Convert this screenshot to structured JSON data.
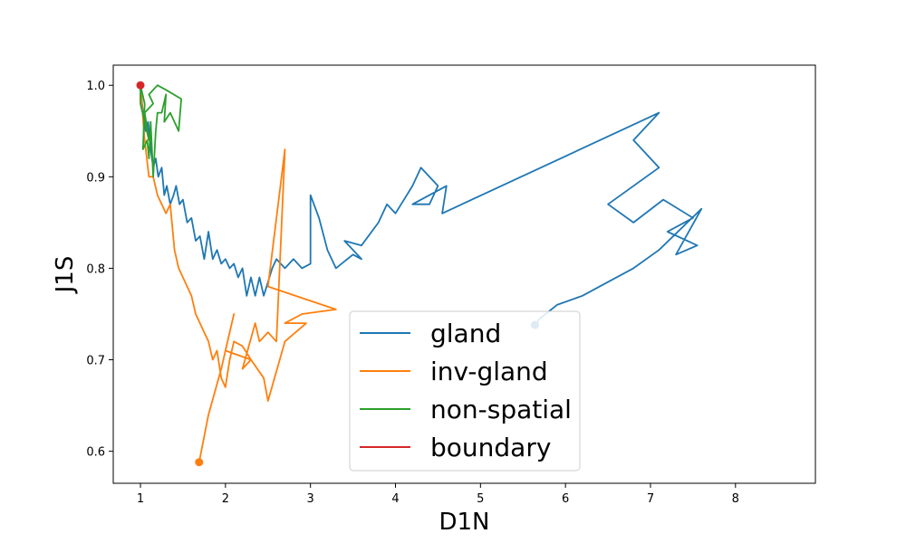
{
  "chart_data": {
    "type": "line",
    "title": "",
    "xlabel": "D1N",
    "ylabel": "J1S",
    "xlim": [
      0.68,
      8.94
    ],
    "ylim": [
      0.565,
      1.022
    ],
    "xticks": [
      1,
      2,
      3,
      4,
      5,
      6,
      7,
      8
    ],
    "yticks": [
      0.6,
      0.7,
      0.8,
      0.9,
      1.0
    ],
    "xtick_labels": [
      "1",
      "2",
      "3",
      "4",
      "5",
      "6",
      "7",
      "8"
    ],
    "ytick_labels": [
      "0.6",
      "0.7",
      "0.8",
      "0.9",
      "1.0"
    ],
    "grid": false,
    "legend_position": "lower-center",
    "series": [
      {
        "name": "gland",
        "color": "#1f77b4",
        "endpoint": [
          5.64,
          0.738
        ],
        "points": [
          [
            1.0,
            1.0
          ],
          [
            1.03,
            0.97
          ],
          [
            1.06,
            0.95
          ],
          [
            1.09,
            0.96
          ],
          [
            1.12,
            0.93
          ],
          [
            1.15,
            0.91
          ],
          [
            1.18,
            0.92
          ],
          [
            1.21,
            0.9
          ],
          [
            1.25,
            0.91
          ],
          [
            1.28,
            0.88
          ],
          [
            1.31,
            0.89
          ],
          [
            1.35,
            0.87
          ],
          [
            1.39,
            0.88
          ],
          [
            1.42,
            0.89
          ],
          [
            1.46,
            0.87
          ],
          [
            1.5,
            0.875
          ],
          [
            1.55,
            0.85
          ],
          [
            1.6,
            0.855
          ],
          [
            1.65,
            0.83
          ],
          [
            1.7,
            0.835
          ],
          [
            1.75,
            0.81
          ],
          [
            1.8,
            0.84
          ],
          [
            1.85,
            0.81
          ],
          [
            1.9,
            0.82
          ],
          [
            1.95,
            0.805
          ],
          [
            2.0,
            0.81
          ],
          [
            2.05,
            0.8
          ],
          [
            2.1,
            0.805
          ],
          [
            2.15,
            0.79
          ],
          [
            2.2,
            0.8
          ],
          [
            2.25,
            0.77
          ],
          [
            2.3,
            0.79
          ],
          [
            2.35,
            0.77
          ],
          [
            2.4,
            0.79
          ],
          [
            2.45,
            0.77
          ],
          [
            2.5,
            0.785
          ],
          [
            2.55,
            0.8
          ],
          [
            2.6,
            0.81
          ],
          [
            2.7,
            0.8
          ],
          [
            2.8,
            0.81
          ],
          [
            2.9,
            0.8
          ],
          [
            3.0,
            0.805
          ],
          [
            3.0,
            0.88
          ],
          [
            3.1,
            0.855
          ],
          [
            3.2,
            0.82
          ],
          [
            3.3,
            0.8
          ],
          [
            3.5,
            0.815
          ],
          [
            3.6,
            0.81
          ],
          [
            3.4,
            0.83
          ],
          [
            3.6,
            0.825
          ],
          [
            3.8,
            0.85
          ],
          [
            3.9,
            0.87
          ],
          [
            4.0,
            0.86
          ],
          [
            4.2,
            0.89
          ],
          [
            4.3,
            0.91
          ],
          [
            4.5,
            0.89
          ],
          [
            4.4,
            0.87
          ],
          [
            4.2,
            0.87
          ],
          [
            4.6,
            0.89
          ],
          [
            4.55,
            0.86
          ],
          [
            7.1,
            0.97
          ],
          [
            6.8,
            0.94
          ],
          [
            7.1,
            0.91
          ],
          [
            6.5,
            0.87
          ],
          [
            6.8,
            0.85
          ],
          [
            7.15,
            0.875
          ],
          [
            7.5,
            0.855
          ],
          [
            7.2,
            0.84
          ],
          [
            7.55,
            0.825
          ],
          [
            7.3,
            0.815
          ],
          [
            7.6,
            0.865
          ],
          [
            7.1,
            0.82
          ],
          [
            6.8,
            0.8
          ],
          [
            6.5,
            0.785
          ],
          [
            6.2,
            0.77
          ],
          [
            5.9,
            0.76
          ],
          [
            5.7,
            0.745
          ],
          [
            5.64,
            0.738
          ]
        ]
      },
      {
        "name": "inv-gland",
        "color": "#ff7f0e",
        "endpoint": [
          1.69,
          0.588
        ],
        "points": [
          [
            1.0,
            1.0
          ],
          [
            1.05,
            0.94
          ],
          [
            1.1,
            0.9
          ],
          [
            1.15,
            0.9
          ],
          [
            1.2,
            0.88
          ],
          [
            1.25,
            0.87
          ],
          [
            1.3,
            0.86
          ],
          [
            1.35,
            0.87
          ],
          [
            1.4,
            0.82
          ],
          [
            1.45,
            0.8
          ],
          [
            1.5,
            0.79
          ],
          [
            1.55,
            0.78
          ],
          [
            1.6,
            0.77
          ],
          [
            1.65,
            0.75
          ],
          [
            1.7,
            0.74
          ],
          [
            1.75,
            0.73
          ],
          [
            1.8,
            0.72
          ],
          [
            1.85,
            0.7
          ],
          [
            1.9,
            0.71
          ],
          [
            1.95,
            0.68
          ],
          [
            2.0,
            0.67
          ],
          [
            2.05,
            0.7
          ],
          [
            2.1,
            0.72
          ],
          [
            2.2,
            0.715
          ],
          [
            2.3,
            0.7
          ],
          [
            2.2,
            0.69
          ],
          [
            2.35,
            0.74
          ],
          [
            2.4,
            0.72
          ],
          [
            2.5,
            0.73
          ],
          [
            2.6,
            0.72
          ],
          [
            2.7,
            0.93
          ],
          [
            2.5,
            0.78
          ],
          [
            3.3,
            0.755
          ],
          [
            2.9,
            0.75
          ],
          [
            2.7,
            0.74
          ],
          [
            2.95,
            0.74
          ],
          [
            2.7,
            0.72
          ],
          [
            2.5,
            0.655
          ],
          [
            2.45,
            0.68
          ],
          [
            2.3,
            0.7
          ],
          [
            2.0,
            0.71
          ],
          [
            2.1,
            0.75
          ],
          [
            1.95,
            0.69
          ],
          [
            1.8,
            0.64
          ],
          [
            1.69,
            0.588
          ]
        ]
      },
      {
        "name": "non-spatial",
        "color": "#2ca02c",
        "endpoint": [
          1.0,
          1.0
        ],
        "points": [
          [
            1.0,
            1.0
          ],
          [
            1.05,
            0.98
          ],
          [
            1.03,
            0.93
          ],
          [
            1.08,
            0.94
          ],
          [
            1.1,
            0.92
          ],
          [
            1.12,
            0.96
          ],
          [
            1.15,
            0.9
          ],
          [
            1.18,
            0.95
          ],
          [
            1.2,
            0.97
          ],
          [
            1.25,
            0.97
          ],
          [
            1.3,
            0.99
          ],
          [
            1.28,
            0.96
          ],
          [
            1.35,
            0.97
          ],
          [
            1.45,
            0.95
          ],
          [
            1.48,
            0.985
          ],
          [
            1.3,
            0.995
          ],
          [
            1.2,
            1.0
          ],
          [
            1.1,
            0.99
          ],
          [
            1.15,
            0.98
          ],
          [
            1.05,
            0.97
          ],
          [
            1.1,
            0.94
          ],
          [
            1.0,
            0.98
          ],
          [
            1.0,
            1.0
          ]
        ]
      },
      {
        "name": "boundary",
        "color": "#d62728",
        "endpoint": [
          1.0,
          1.0
        ],
        "points": [
          [
            1.0,
            1.0
          ]
        ]
      }
    ]
  }
}
